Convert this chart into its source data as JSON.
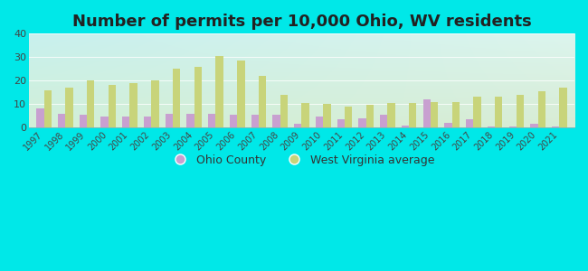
{
  "title": "Number of permits per 10,000 Ohio, WV residents",
  "years": [
    1997,
    1998,
    1999,
    2000,
    2001,
    2002,
    2003,
    2004,
    2005,
    2006,
    2007,
    2008,
    2009,
    2010,
    2011,
    2012,
    2013,
    2014,
    2015,
    2016,
    2017,
    2018,
    2019,
    2020,
    2021
  ],
  "ohio_county": [
    8.0,
    6.0,
    5.5,
    4.5,
    4.5,
    4.5,
    6.0,
    6.0,
    6.0,
    5.5,
    5.5,
    5.5,
    1.5,
    4.5,
    3.5,
    4.0,
    5.5,
    1.0,
    12.0,
    2.0,
    3.5,
    0.5,
    0.5,
    1.5,
    0.5
  ],
  "wv_average": [
    16.0,
    17.0,
    20.0,
    18.0,
    19.0,
    20.0,
    25.0,
    26.0,
    30.5,
    28.5,
    22.0,
    14.0,
    10.5,
    10.0,
    9.0,
    9.5,
    10.5,
    10.5,
    11.0,
    11.0,
    13.0,
    13.0,
    14.0,
    15.5,
    17.0
  ],
  "ohio_color": "#c8a0d0",
  "wv_color": "#c8d47a",
  "background_tl": "#c8f0ee",
  "background_br": "#d8ecd4",
  "outer_bg": "#00e8e8",
  "ylim": [
    0,
    40
  ],
  "yticks": [
    0,
    10,
    20,
    30,
    40
  ],
  "bar_width": 0.35,
  "title_fontsize": 13,
  "legend_ohio": "Ohio County",
  "legend_wv": "West Virginia average"
}
